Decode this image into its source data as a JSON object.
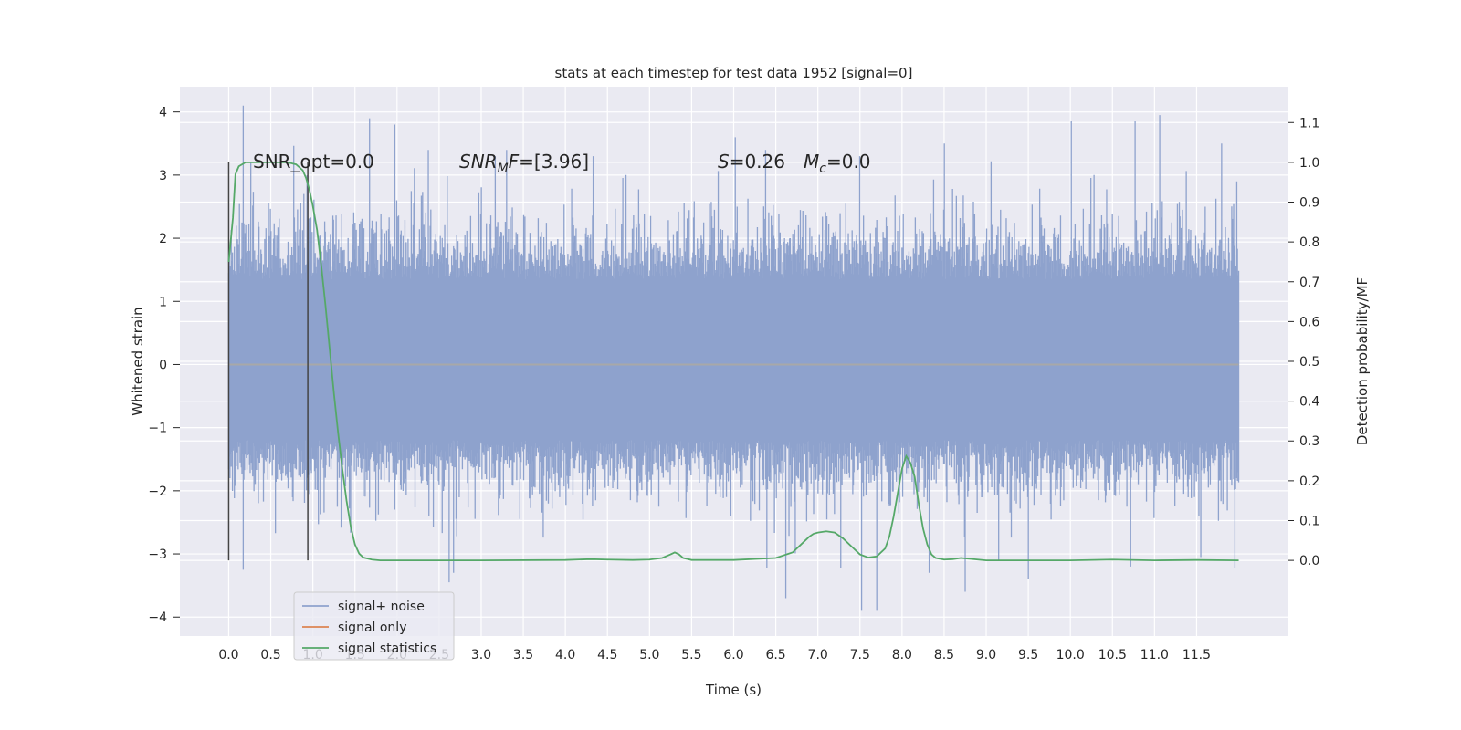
{
  "chart_data": {
    "type": "line",
    "title": "stats at each timestep for test data 1952 [signal=0]",
    "xlabel": "Time (s)",
    "ylabel_left": "Whitened strain",
    "ylabel_right": "Detection probability/MF",
    "xlim": [
      -0.58,
      12.58
    ],
    "ylim_left": [
      -4.3,
      4.4
    ],
    "ylim_right": [
      -0.19,
      1.19
    ],
    "x_ticks": [
      "0.0",
      "0.5",
      "1.0",
      "1.5",
      "2.0",
      "2.5",
      "3.0",
      "3.5",
      "4.0",
      "4.5",
      "5.0",
      "5.5",
      "6.0",
      "6.5",
      "7.0",
      "7.5",
      "8.0",
      "8.5",
      "9.0",
      "9.5",
      "10.0",
      "10.5",
      "11.0",
      "11.5"
    ],
    "y_ticks_left": [
      "4",
      "3",
      "2",
      "1",
      "0",
      "−1",
      "−2",
      "−3",
      "−4"
    ],
    "y_ticks_right": [
      "1.1",
      "1.0",
      "0.9",
      "0.8",
      "0.7",
      "0.6",
      "0.5",
      "0.4",
      "0.3",
      "0.2",
      "0.1",
      "0.0"
    ],
    "grid": true,
    "legend_position": "lower-left",
    "annotations": {
      "snr_opt": "SNR_opt=0.0",
      "snr_mf_sym": "SNR",
      "snr_mf_sub": "M",
      "snr_mf_rest": "F=[3.96]",
      "s_sym": "S",
      "s_rest": "=0.26",
      "mc_sym": "M",
      "mc_sub": "c",
      "mc_rest": "=0.0"
    },
    "window_lines_x": [
      0.0,
      0.94
    ],
    "series": [
      {
        "name": "signal+ noise",
        "color": "#8ea2cd",
        "x_range": [
          0.0,
          12.0
        ],
        "envelope_upper_base": 1.35,
        "envelope_lower_base": -1.2,
        "spike_peaks": [
          [
            0.17,
            4.1
          ],
          [
            0.93,
            3.0
          ],
          [
            1.67,
            3.9
          ],
          [
            1.97,
            3.8
          ],
          [
            2.37,
            3.4
          ],
          [
            3.17,
            3.3
          ],
          [
            3.3,
            3.4
          ],
          [
            4.33,
            3.3
          ],
          [
            6.02,
            3.6
          ],
          [
            6.38,
            3.4
          ],
          [
            7.5,
            3.3
          ],
          [
            8.5,
            3.5
          ],
          [
            10.01,
            3.85
          ],
          [
            10.77,
            3.85
          ],
          [
            11.06,
            3.95
          ],
          [
            11.8,
            3.5
          ],
          [
            11.98,
            2.9
          ]
        ],
        "spike_troughs": [
          [
            0.17,
            -3.25
          ],
          [
            2.62,
            -3.45
          ],
          [
            2.67,
            -3.3
          ],
          [
            6.62,
            -3.7
          ],
          [
            7.52,
            -3.9
          ],
          [
            7.7,
            -3.9
          ],
          [
            8.32,
            -3.3
          ],
          [
            8.75,
            -3.6
          ],
          [
            9.5,
            -3.4
          ],
          [
            10.72,
            -3.2
          ],
          [
            11.55,
            -3.05
          ],
          [
            11.98,
            -1.8
          ]
        ]
      },
      {
        "name": "signal only",
        "color": "#dd8452",
        "x": [
          0.0,
          12.0
        ],
        "y": [
          0.0,
          0.0
        ]
      },
      {
        "name": "signal statistics",
        "color": "#55a868",
        "axis": "right",
        "x": [
          0.0,
          0.05,
          0.08,
          0.12,
          0.2,
          0.3,
          0.4,
          0.5,
          0.6,
          0.7,
          0.8,
          0.88,
          0.92,
          0.96,
          1.0,
          1.05,
          1.1,
          1.15,
          1.2,
          1.25,
          1.3,
          1.35,
          1.4,
          1.45,
          1.5,
          1.55,
          1.6,
          1.7,
          1.8,
          2.0,
          3.0,
          4.0,
          4.3,
          4.5,
          4.8,
          5.0,
          5.15,
          5.25,
          5.3,
          5.35,
          5.4,
          5.5,
          5.7,
          6.0,
          6.5,
          6.7,
          6.8,
          6.9,
          6.95,
          7.0,
          7.1,
          7.2,
          7.3,
          7.4,
          7.5,
          7.6,
          7.7,
          7.8,
          7.85,
          7.9,
          7.95,
          8.0,
          8.05,
          8.1,
          8.15,
          8.2,
          8.25,
          8.3,
          8.35,
          8.4,
          8.5,
          8.6,
          8.7,
          8.8,
          9.0,
          9.5,
          10.0,
          10.5,
          11.0,
          11.5,
          12.0
        ],
        "y": [
          0.75,
          0.86,
          0.97,
          0.99,
          1.0,
          1.0,
          1.0,
          1.0,
          1.0,
          1.0,
          0.995,
          0.98,
          0.96,
          0.93,
          0.89,
          0.83,
          0.74,
          0.64,
          0.53,
          0.42,
          0.32,
          0.23,
          0.15,
          0.085,
          0.04,
          0.017,
          0.007,
          0.002,
          0.0,
          0.0,
          0.0,
          0.001,
          0.003,
          0.002,
          0.001,
          0.002,
          0.006,
          0.015,
          0.02,
          0.015,
          0.006,
          0.001,
          0.001,
          0.001,
          0.006,
          0.02,
          0.04,
          0.06,
          0.067,
          0.07,
          0.073,
          0.07,
          0.055,
          0.035,
          0.015,
          0.007,
          0.01,
          0.03,
          0.06,
          0.11,
          0.17,
          0.23,
          0.262,
          0.245,
          0.21,
          0.14,
          0.08,
          0.04,
          0.015,
          0.006,
          0.002,
          0.003,
          0.006,
          0.004,
          0.0,
          0.0,
          0.0,
          0.002,
          0.0,
          0.001,
          0.0
        ]
      }
    ]
  }
}
